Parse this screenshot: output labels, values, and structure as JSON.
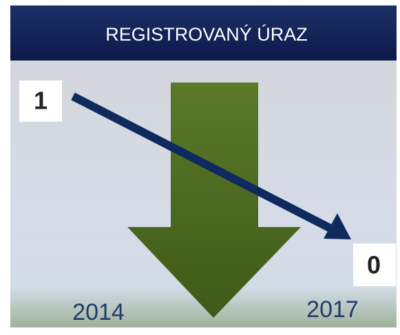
{
  "header": {
    "title": "REGISTROVANÝ ÚRAZ"
  },
  "start": {
    "value": 1,
    "year": "2014"
  },
  "end": {
    "value": 0,
    "year": "2017"
  }
}
